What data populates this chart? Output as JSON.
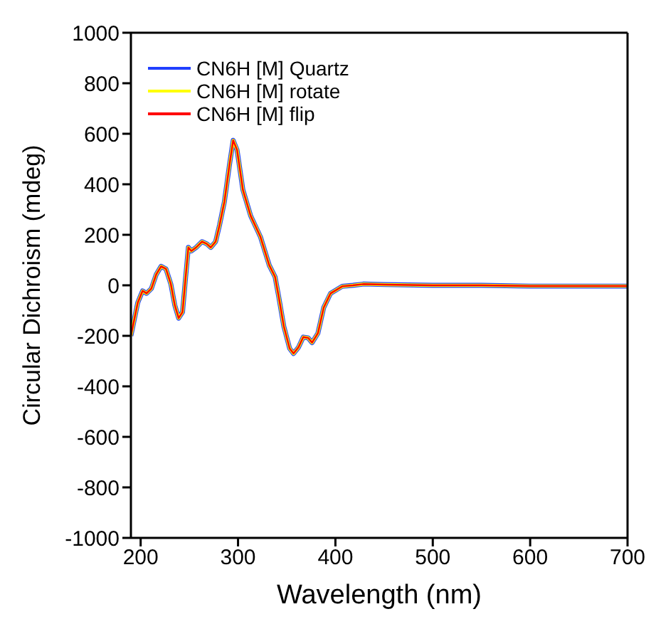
{
  "chart_data": {
    "type": "line",
    "xlabel": "Wavelength (nm)",
    "ylabel": "Circular Dichroism (mdeg)",
    "x": [
      190,
      197,
      199,
      202,
      206,
      211,
      216,
      221,
      226,
      231,
      235,
      239,
      243,
      246,
      249,
      252,
      257,
      263,
      268,
      272,
      277,
      281,
      286,
      291,
      295,
      299,
      305,
      313,
      323,
      332,
      338,
      342,
      347,
      353,
      357,
      362,
      367,
      372,
      376,
      382,
      388,
      395,
      407,
      418,
      429,
      450,
      500,
      550,
      600,
      650,
      700
    ],
    "series": [
      {
        "name": "CN6H [M] Quartz",
        "color": "#2040ff",
        "values": [
          -200,
          -69,
          -50,
          -22,
          -32,
          -13,
          43,
          75,
          65,
          5,
          -78,
          -130,
          -106,
          24,
          150,
          136,
          150,
          173,
          164,
          150,
          173,
          238,
          331,
          471,
          574,
          536,
          378,
          275,
          192,
          80,
          34,
          -50,
          -162,
          -250,
          -270,
          -246,
          -205,
          -208,
          -227,
          -190,
          -88,
          -32,
          -4,
          0,
          5,
          3,
          0,
          0,
          -3,
          -3,
          -3
        ]
      },
      {
        "name": "CN6H [M] rotate",
        "color": "#ffff00",
        "values": [
          -200,
          -69,
          -50,
          -22,
          -32,
          -13,
          43,
          75,
          65,
          5,
          -78,
          -130,
          -106,
          24,
          150,
          136,
          150,
          173,
          164,
          150,
          173,
          238,
          331,
          471,
          574,
          536,
          378,
          275,
          192,
          80,
          34,
          -50,
          -162,
          -250,
          -270,
          -246,
          -205,
          -208,
          -227,
          -190,
          -88,
          -32,
          -4,
          0,
          5,
          3,
          0,
          0,
          -3,
          -3,
          -3
        ]
      },
      {
        "name": "CN6H [M] flip",
        "color": "#ff0000",
        "values": [
          -200,
          -69,
          -50,
          -22,
          -32,
          -13,
          43,
          75,
          65,
          5,
          -78,
          -130,
          -106,
          24,
          150,
          136,
          150,
          173,
          164,
          150,
          173,
          238,
          331,
          471,
          574,
          536,
          378,
          275,
          192,
          80,
          34,
          -50,
          -162,
          -250,
          -270,
          -246,
          -205,
          -208,
          -227,
          -190,
          -88,
          -32,
          -4,
          0,
          5,
          3,
          0,
          0,
          -3,
          -3,
          -3
        ]
      }
    ],
    "xlim": [
      190,
      700
    ],
    "xticks": [
      200,
      300,
      400,
      500,
      600,
      700
    ],
    "ylim": [
      -1000,
      1000
    ],
    "yticks": [
      -1000,
      -800,
      -600,
      -400,
      -200,
      0,
      200,
      400,
      600,
      800,
      1000
    ],
    "legend": "top left",
    "grid": false,
    "marker": "none",
    "line_style": "solid"
  }
}
